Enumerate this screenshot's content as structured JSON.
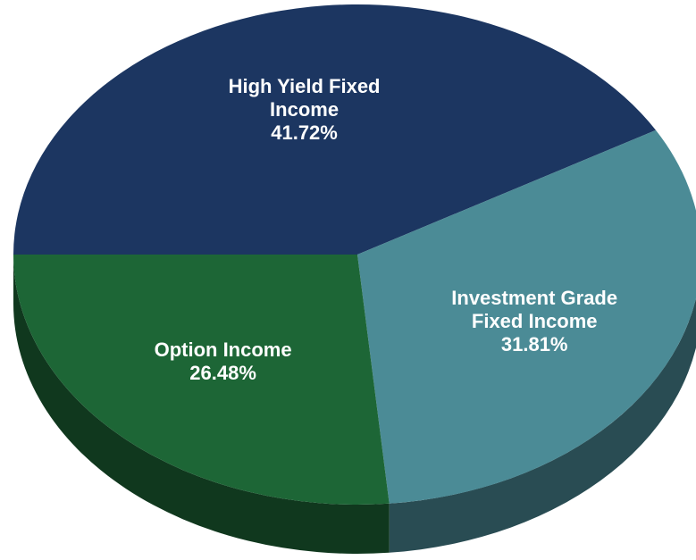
{
  "chart_data": {
    "type": "pie",
    "categories": [
      "High Yield Fixed Income",
      "Investment Grade Fixed Income",
      "Option Income"
    ],
    "values": [
      41.72,
      31.81,
      26.48
    ],
    "value_labels": [
      "41.72%",
      "31.81%",
      "26.48%"
    ],
    "colors": [
      "#1c3661",
      "#4b8b96",
      "#1d6636"
    ]
  }
}
